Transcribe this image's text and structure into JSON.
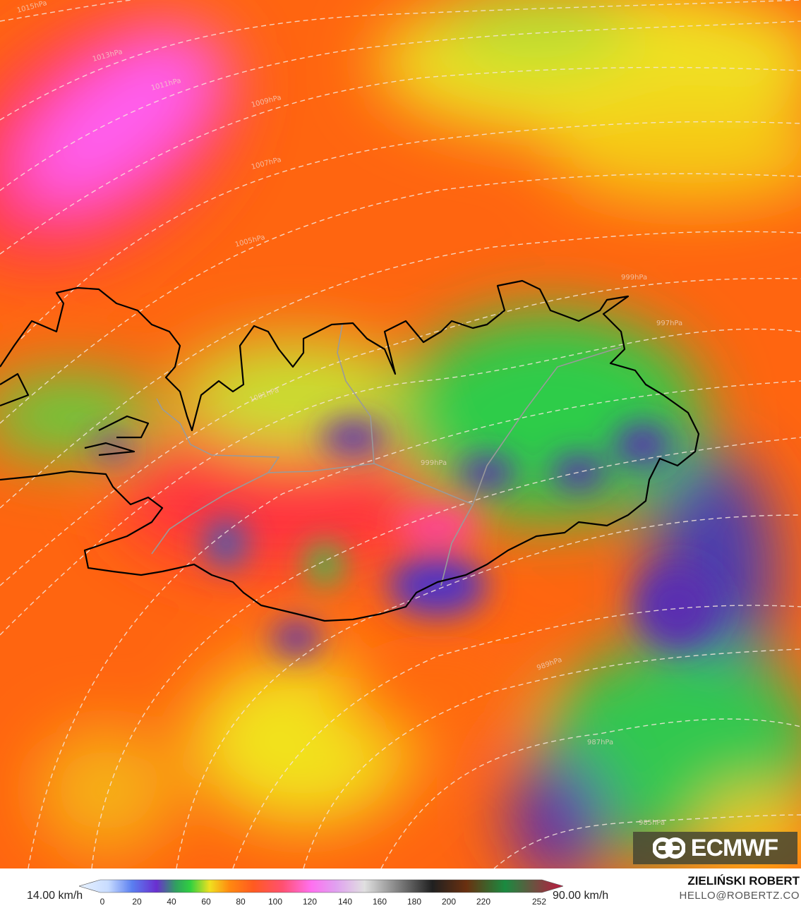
{
  "map": {
    "isobar_labels": [
      "1015hPa",
      "1013hPa",
      "1011hPa",
      "1009hPa",
      "1007hPa",
      "1005hPa",
      "1001hPa",
      "999hPa",
      "997hPa",
      "999hPa",
      "989hPa",
      "987hPa",
      "985hPa"
    ],
    "colors": {
      "base": "#ff6a10",
      "magenta": "#ff5ef0",
      "yellow": "#f2e21e",
      "green": "#22c94a",
      "purple": "#5a2fb0",
      "coast": "#000000",
      "borders": "#9a9a9a"
    }
  },
  "logo": {
    "text": "ECMWF"
  },
  "legend": {
    "min_label": "14.00 km/h",
    "max_label": "90.00 km/h",
    "ticks": [
      "0",
      "20",
      "40",
      "60",
      "80",
      "100",
      "120",
      "140",
      "160",
      "180",
      "200",
      "220",
      "252"
    ]
  },
  "author": {
    "name": "ZIELIŃSKI ROBERT",
    "email": "HELLO@ROBERTZ.CO"
  }
}
